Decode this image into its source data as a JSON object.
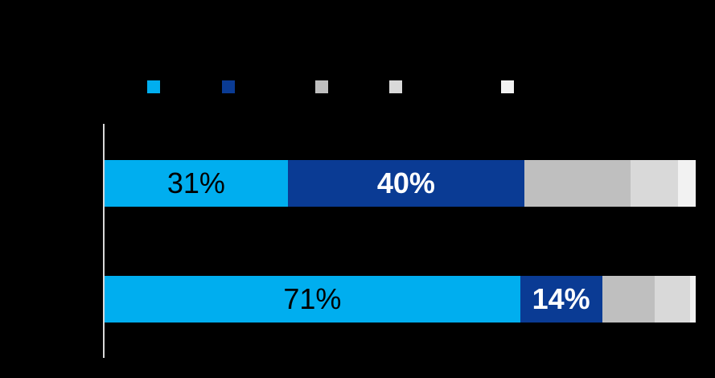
{
  "page": {
    "background_color": "#000000",
    "axis_line_color": "#D9D9D9",
    "note_visible_text": [
      "31%",
      "40%",
      "71%",
      "14%"
    ]
  },
  "chart_data": {
    "type": "bar",
    "orientation": "horizontal",
    "stacked": true,
    "unit": "percent",
    "title": "",
    "xlabel": "",
    "ylabel": "",
    "xlim": [
      0,
      100
    ],
    "grid": false,
    "legend_position": "top",
    "legend": [
      {
        "label": "",
        "color": "#00AEEF"
      },
      {
        "label": "",
        "color": "#0A3B94"
      },
      {
        "label": "",
        "color": "#BFBFBF"
      },
      {
        "label": "",
        "color": "#D9D9D9"
      },
      {
        "label": "",
        "color": "#F2F2F2"
      }
    ],
    "bars": [
      {
        "category": "",
        "segments": [
          {
            "value": 31,
            "label": "31%",
            "color": "#00AEEF",
            "label_color": "#000000",
            "label_bold": false
          },
          {
            "value": 40,
            "label": "40%",
            "color": "#0A3B94",
            "label_color": "#FFFFFF",
            "label_bold": true
          },
          {
            "value": 18,
            "label": "",
            "color": "#BFBFBF"
          },
          {
            "value": 8,
            "label": "",
            "color": "#D9D9D9"
          },
          {
            "value": 3,
            "label": "",
            "color": "#F2F2F2"
          }
        ]
      },
      {
        "category": "",
        "segments": [
          {
            "value": 71,
            "label": "71%",
            "color": "#00AEEF",
            "label_color": "#000000",
            "label_bold": false
          },
          {
            "value": 14,
            "label": "14%",
            "color": "#0A3B94",
            "label_color": "#FFFFFF",
            "label_bold": true
          },
          {
            "value": 9,
            "label": "",
            "color": "#BFBFBF"
          },
          {
            "value": 6,
            "label": "",
            "color": "#D9D9D9"
          },
          {
            "value": 1,
            "label": "",
            "color": "#F2F2F2"
          }
        ]
      }
    ]
  }
}
